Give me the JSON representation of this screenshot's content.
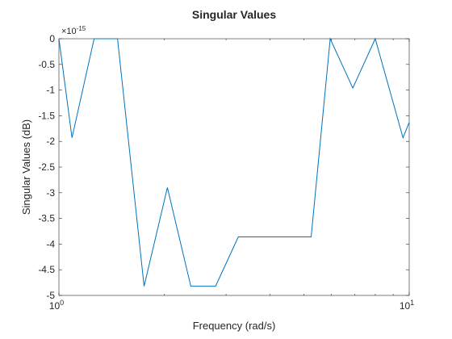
{
  "chart_data": {
    "type": "line",
    "title": "Singular Values",
    "xlabel": "Frequency (rad/s)",
    "ylabel": "Singular Values (dB)",
    "xscale": "log",
    "xlim": [
      1,
      10
    ],
    "ylim": [
      -5,
      0
    ],
    "y_exponent_label": "×10^-15",
    "x_ticks": [
      {
        "value": 1,
        "base": "10",
        "exp": "0"
      },
      {
        "value": 10,
        "base": "10",
        "exp": "1"
      }
    ],
    "y_ticks": [
      {
        "value": 0,
        "label": "0"
      },
      {
        "value": -0.5,
        "label": "-0.5"
      },
      {
        "value": -1,
        "label": "-1"
      },
      {
        "value": -1.5,
        "label": "-1.5"
      },
      {
        "value": -2,
        "label": "-2"
      },
      {
        "value": -2.5,
        "label": "-2.5"
      },
      {
        "value": -3,
        "label": "-3"
      },
      {
        "value": -3.5,
        "label": "-3.5"
      },
      {
        "value": -4,
        "label": "-4"
      },
      {
        "value": -4.5,
        "label": "-4.5"
      },
      {
        "value": -5,
        "label": "-5"
      }
    ],
    "grid": false,
    "series": [
      {
        "color": "#0072BD",
        "x": [
          1.0,
          1.09,
          1.26,
          1.47,
          1.75,
          2.04,
          2.38,
          2.8,
          3.25,
          4.5,
          5.25,
          5.95,
          6.9,
          8.0,
          9.6,
          10.0
        ],
        "y": [
          0,
          -1.93,
          0,
          0,
          -4.82,
          -2.9,
          -4.82,
          -4.82,
          -3.86,
          -3.86,
          -3.86,
          0,
          -0.96,
          0,
          -1.93,
          -1.63
        ]
      }
    ]
  }
}
